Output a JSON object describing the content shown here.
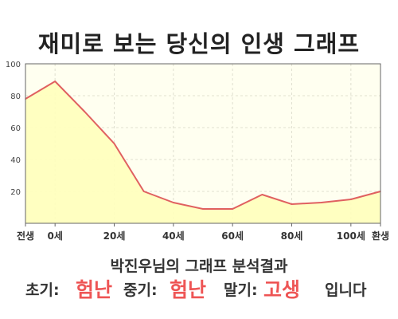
{
  "title": "재미로 보는 당신의 인생 그래프",
  "analysis_title": "박진우님의 그래프 분석결과",
  "result": {
    "early_label": "초기:",
    "early_value": "험난",
    "mid_label": "중기:",
    "mid_value": "험난",
    "late_label": "말기:",
    "late_value": "고생",
    "suffix": "입니다"
  },
  "colors": {
    "line": "#e06060",
    "fill": "#ffffbb",
    "plot_bg": "#fffff0",
    "grid": "#e0e0d0",
    "highlight": "#ee5555"
  },
  "chart_data": {
    "type": "area",
    "x": [
      -10,
      0,
      10,
      20,
      30,
      40,
      50,
      60,
      70,
      80,
      90,
      100,
      110
    ],
    "values": [
      78,
      89,
      70,
      50,
      20,
      13,
      9,
      9,
      18,
      12,
      13,
      15,
      20
    ],
    "x_ticks": [
      {
        "x": -10,
        "label": "전생"
      },
      {
        "x": 0,
        "label": "0세"
      },
      {
        "x": 20,
        "label": "20세"
      },
      {
        "x": 40,
        "label": "40세"
      },
      {
        "x": 60,
        "label": "60세"
      },
      {
        "x": 80,
        "label": "80세"
      },
      {
        "x": 100,
        "label": "100세"
      },
      {
        "x": 110,
        "label": "환생"
      }
    ],
    "y_ticks": [
      20,
      40,
      60,
      80,
      100
    ],
    "xlim": [
      -10,
      110
    ],
    "ylim": [
      0,
      100
    ],
    "grid": true,
    "legend": "none",
    "xlabel": "",
    "ylabel": ""
  }
}
